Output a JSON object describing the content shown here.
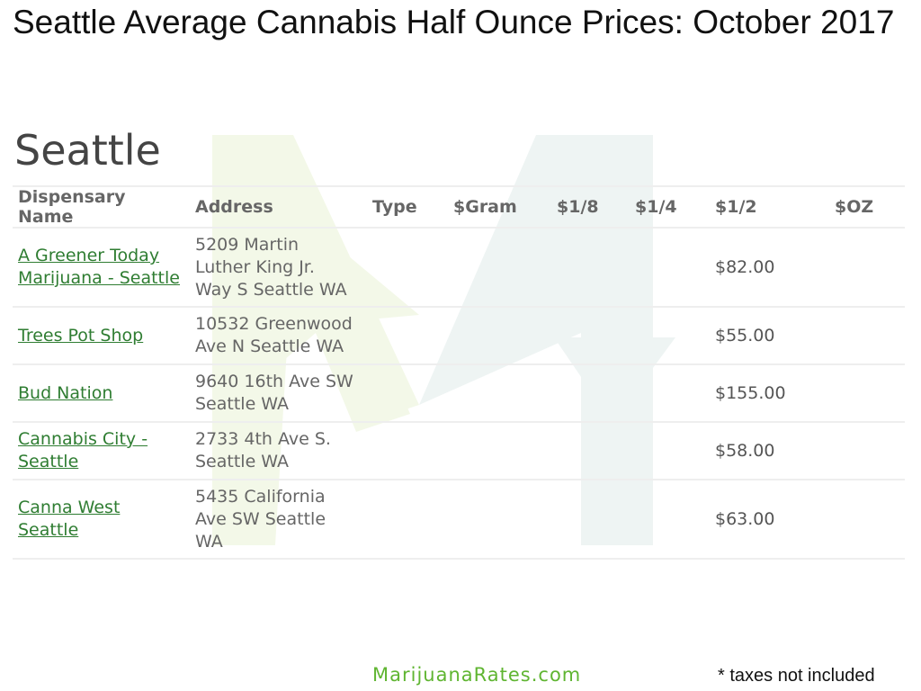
{
  "title": "Seattle Average Cannabis Half Ounce Prices: October 2017",
  "section_title": "Seattle",
  "columns": [
    "Dispensary Name",
    "Address",
    "Type",
    "$Gram",
    "$1/8",
    "$1/4",
    "$1/2",
    "$OZ"
  ],
  "rows": [
    {
      "name": [
        "A Greener Today",
        "Marijuana - Seattle"
      ],
      "address": [
        "5209 Martin",
        "Luther King Jr.",
        "Way S Seattle WA"
      ],
      "type": "",
      "gram": "",
      "eighth": "",
      "quarter": "",
      "half": "$82.00",
      "oz": ""
    },
    {
      "name": [
        "Trees Pot Shop"
      ],
      "address": [
        "10532 Greenwood",
        "Ave N Seattle WA"
      ],
      "type": "",
      "gram": "",
      "eighth": "",
      "quarter": "",
      "half": "$55.00",
      "oz": ""
    },
    {
      "name": [
        "Bud Nation"
      ],
      "address": [
        "9640 16th Ave SW",
        "Seattle WA"
      ],
      "type": "",
      "gram": "",
      "eighth": "",
      "quarter": "",
      "half": "$155.00",
      "oz": ""
    },
    {
      "name": [
        "Cannabis City -",
        "Seattle"
      ],
      "address": [
        "2733 4th Ave S.",
        "Seattle WA"
      ],
      "type": "",
      "gram": "",
      "eighth": "",
      "quarter": "",
      "half": "$58.00",
      "oz": ""
    },
    {
      "name": [
        "Canna West",
        "Seattle"
      ],
      "address": [
        "5435 California",
        "Ave SW Seattle",
        "WA"
      ],
      "type": "",
      "gram": "",
      "eighth": "",
      "quarter": "",
      "half": "$63.00",
      "oz": ""
    }
  ],
  "footer": {
    "site": "MarijuanaRates.com",
    "note": "* taxes not included"
  },
  "colors": {
    "link": "#2f7d32",
    "brand": "#5fb531",
    "watermark_green": "#f3f8e8",
    "watermark_blue": "#eef4f3"
  },
  "watermark_icon": "leaf-m-logo-icon"
}
